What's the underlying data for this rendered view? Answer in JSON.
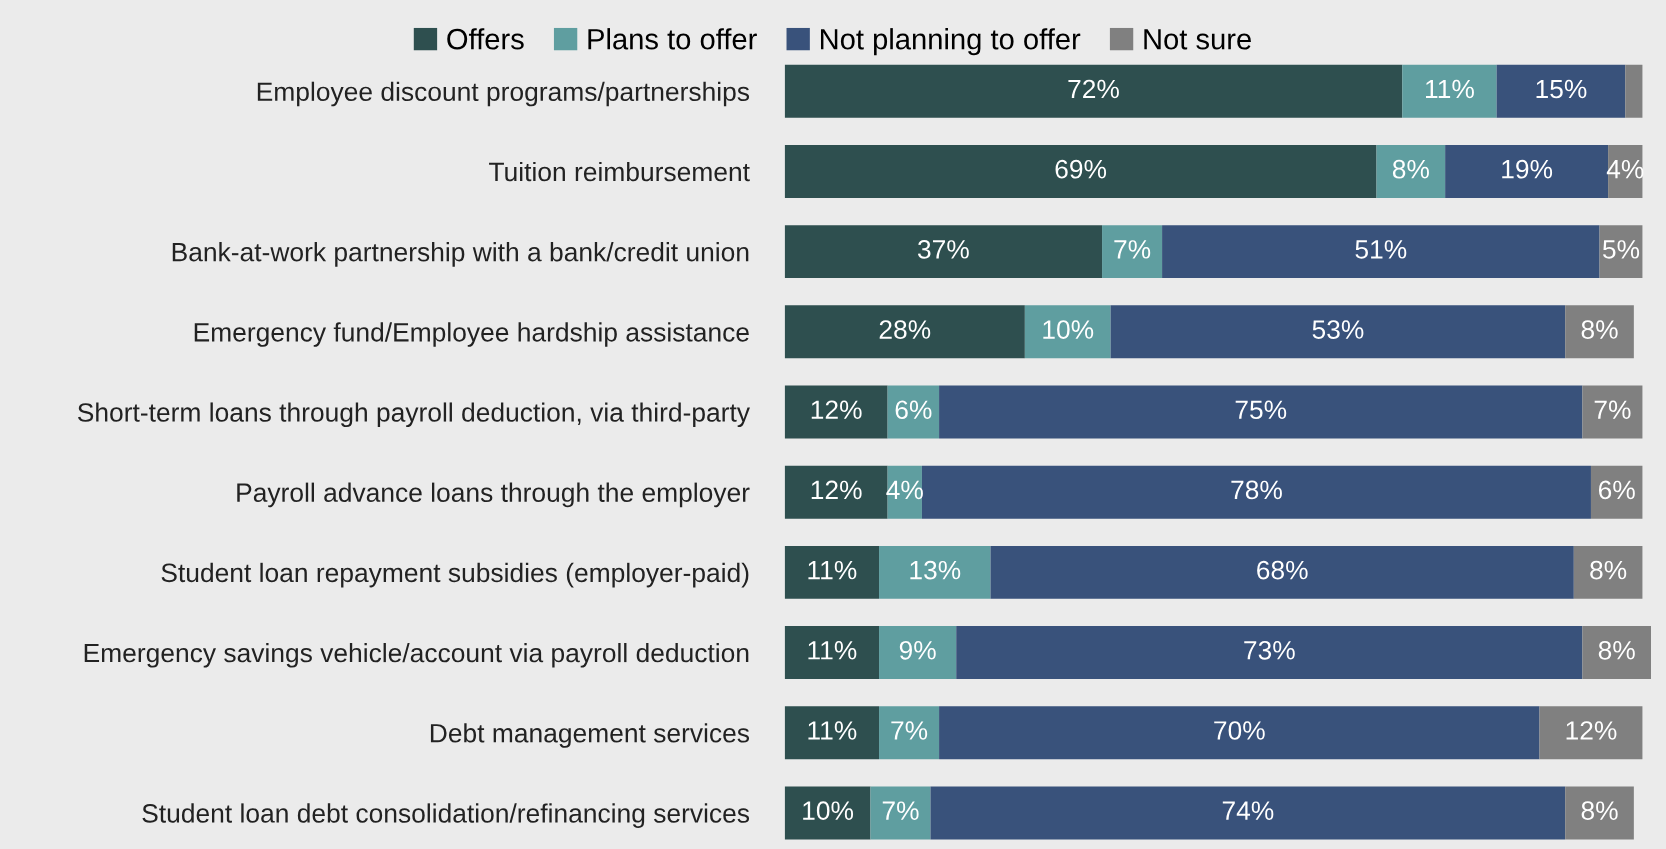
{
  "chart_data": {
    "type": "bar",
    "orientation": "horizontal",
    "stacked": true,
    "legend": "top",
    "categories": [
      "Employee discount programs/partnerships",
      "Tuition reimbursement",
      "Bank-at-work partnership with a bank/credit union",
      "Emergency fund/Employee hardship assistance",
      "Short-term loans through payroll deduction, via third-party",
      "Payroll advance loans through the employer",
      "Student loan repayment subsidies (employer-paid)",
      "Emergency savings vehicle/account via payroll deduction",
      "Debt management services",
      "Student loan debt consolidation/refinancing services"
    ],
    "series": [
      {
        "name": "Offers",
        "color": "#2e4f4f",
        "values": [
          72,
          69,
          37,
          28,
          12,
          12,
          11,
          11,
          11,
          10
        ],
        "value_labels": [
          "72%",
          "69%",
          "37%",
          "28%",
          "12%",
          "12%",
          "11%",
          "11%",
          "11%",
          "10%"
        ]
      },
      {
        "name": "Plans to offer",
        "color": "#5f9ea0",
        "values": [
          11,
          8,
          7,
          10,
          6,
          4,
          13,
          9,
          7,
          7
        ],
        "value_labels": [
          "11%",
          "8%",
          "7%",
          "10%",
          "6%",
          "4%",
          "13%",
          "9%",
          "7%",
          "7%"
        ]
      },
      {
        "name": "Not planning to offer",
        "color": "#39527b",
        "values": [
          15,
          19,
          51,
          53,
          75,
          78,
          68,
          73,
          70,
          74
        ],
        "value_labels": [
          "15%",
          "19%",
          "51%",
          "53%",
          "75%",
          "78%",
          "68%",
          "73%",
          "70%",
          "74%"
        ]
      },
      {
        "name": "Not sure",
        "color": "#808080",
        "values": [
          2,
          4,
          5,
          8,
          7,
          6,
          8,
          8,
          12,
          8
        ],
        "value_labels": [
          null,
          "4%",
          "5%",
          "8%",
          "7%",
          "6%",
          "8%",
          "8%",
          "12%",
          "8%"
        ]
      }
    ]
  }
}
